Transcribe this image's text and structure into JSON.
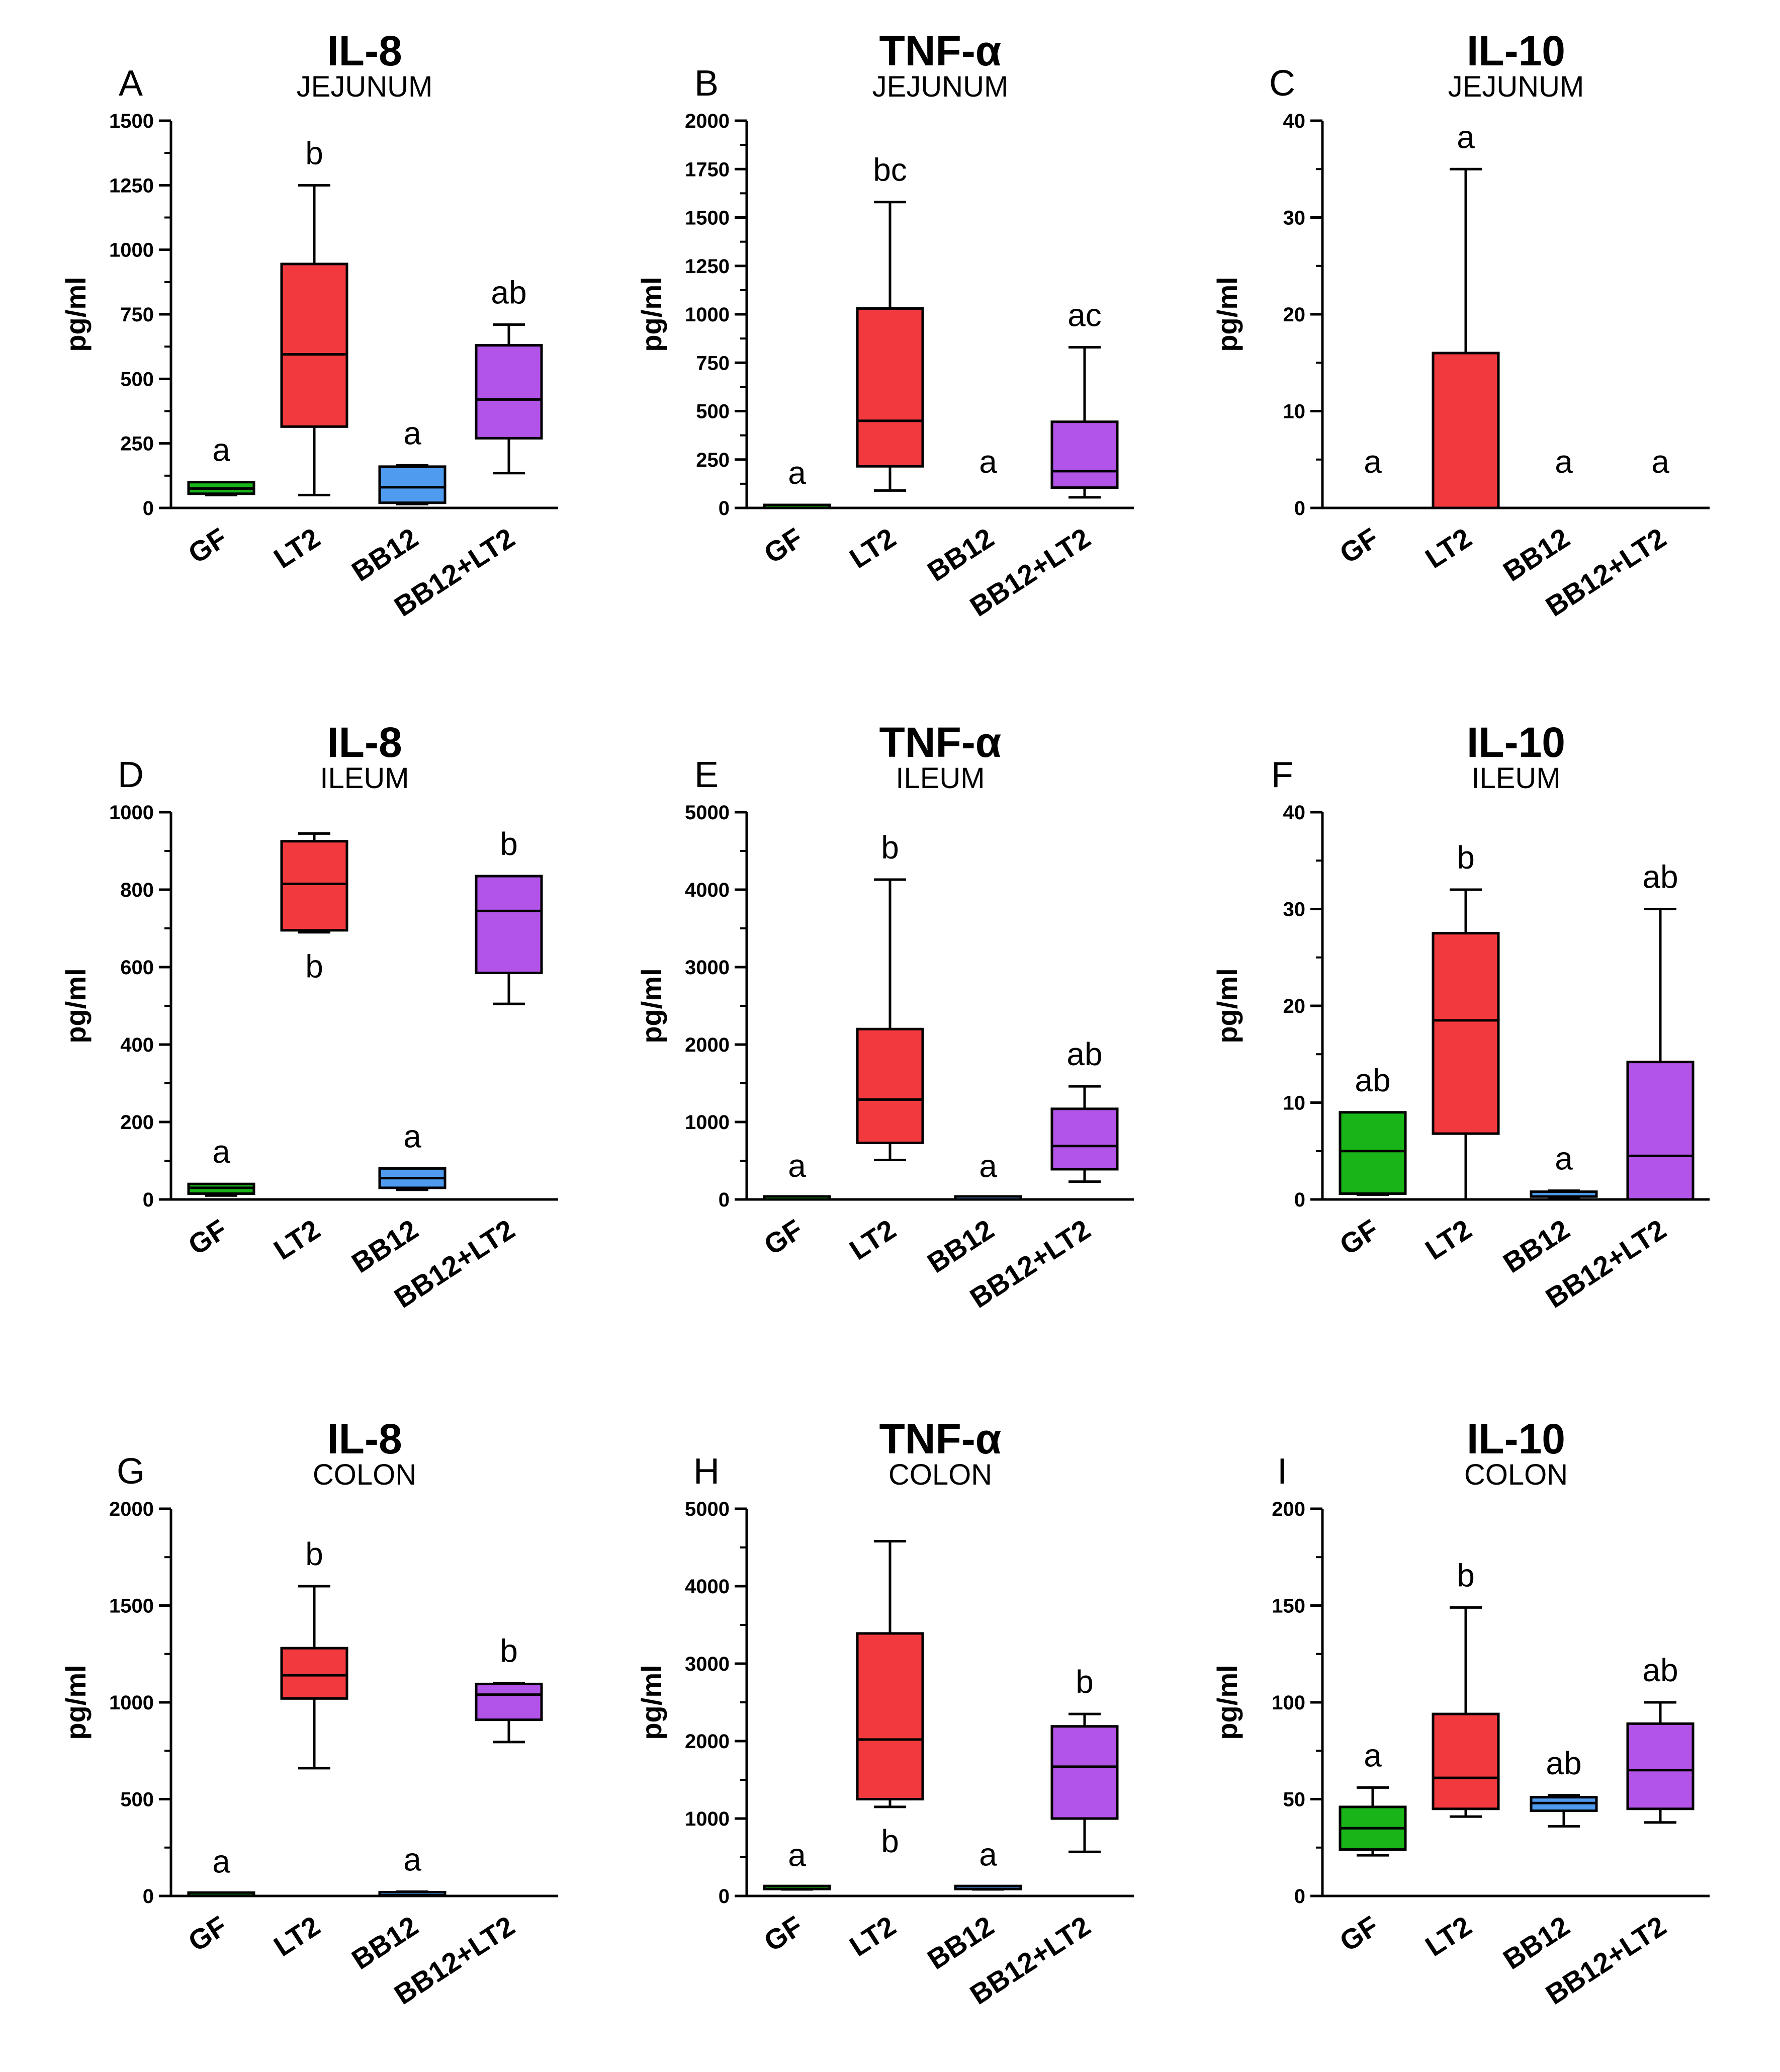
{
  "colors": {
    "GF": "#18b418",
    "LT2": "#f23a3e",
    "BB12": "#4f9bf0",
    "BB12+LT2": "#b354e8"
  },
  "chart_data": [
    {
      "panel": "A",
      "title": "IL-8",
      "subtitle": "JEJUNUM",
      "type": "box",
      "ylabel": "pg/ml",
      "ylim": [
        0,
        1500
      ],
      "yticks": [
        0,
        250,
        500,
        750,
        1000,
        1250,
        1500
      ],
      "yticklabels": [
        "0",
        "250",
        "500",
        "750",
        "1000",
        "1250",
        "1500"
      ],
      "categories": [
        "GF",
        "LT2",
        "BB12",
        "BB12+LT2"
      ],
      "boxes": [
        {
          "min": 50,
          "q1": 55,
          "median": 75,
          "q3": 100,
          "max": 100,
          "label": "a"
        },
        {
          "min": 50,
          "q1": 315,
          "median": 595,
          "q3": 945,
          "max": 1250,
          "label": "b"
        },
        {
          "min": 15,
          "q1": 20,
          "median": 80,
          "q3": 160,
          "max": 165,
          "label": "a"
        },
        {
          "min": 135,
          "q1": 270,
          "median": 420,
          "q3": 630,
          "max": 710,
          "label": "ab"
        }
      ]
    },
    {
      "panel": "B",
      "title": "TNF-α",
      "subtitle": "JEJUNUM",
      "type": "box",
      "ylabel": "pg/ml",
      "ylim": [
        0,
        2000
      ],
      "yticks": [
        0,
        250,
        500,
        750,
        1000,
        1250,
        1500,
        1750,
        2000
      ],
      "yticklabels": [
        "0",
        "250",
        "500",
        "750",
        "1000",
        "1250",
        "1500",
        "1750",
        "2000"
      ],
      "categories": [
        "GF",
        "LT2",
        "BB12",
        "BB12+LT2"
      ],
      "boxes": [
        {
          "min": 0,
          "q1": 0,
          "median": 0,
          "q3": 5,
          "max": 15,
          "label": "a"
        },
        {
          "min": 90,
          "q1": 215,
          "median": 450,
          "q3": 1030,
          "max": 1580,
          "label": "bc"
        },
        {
          "min": 0,
          "q1": 0,
          "median": 0,
          "q3": 0,
          "max": 0,
          "label": "a"
        },
        {
          "min": 55,
          "q1": 105,
          "median": 190,
          "q3": 445,
          "max": 830,
          "label": "ac"
        }
      ]
    },
    {
      "panel": "C",
      "title": "IL-10",
      "subtitle": "JEJUNUM",
      "type": "box",
      "ylabel": "pg/ml",
      "ylim": [
        0,
        40
      ],
      "yticks": [
        0,
        10,
        20,
        30,
        40
      ],
      "yticklabels": [
        "0",
        "10",
        "20",
        "30",
        "40"
      ],
      "categories": [
        "GF",
        "LT2",
        "BB12",
        "BB12+LT2"
      ],
      "boxes": [
        {
          "min": 0,
          "q1": 0,
          "median": 0,
          "q3": 0,
          "max": 0,
          "label": "a"
        },
        {
          "min": 0,
          "q1": 0,
          "median": 0,
          "q3": 16,
          "max": 35,
          "label": "a"
        },
        {
          "min": 0,
          "q1": 0,
          "median": 0,
          "q3": 0,
          "max": 0,
          "label": "a"
        },
        {
          "min": 0,
          "q1": 0,
          "median": 0,
          "q3": 0,
          "max": 0,
          "label": "a"
        }
      ]
    },
    {
      "panel": "D",
      "title": "IL-8",
      "subtitle": "ILEUM",
      "type": "box",
      "ylabel": "pg/ml",
      "ylim": [
        0,
        1000
      ],
      "yticks": [
        0,
        200,
        400,
        600,
        800,
        1000
      ],
      "yticklabels": [
        "0",
        "200",
        "400",
        "600",
        "800",
        "1000"
      ],
      "categories": [
        "GF",
        "LT2",
        "BB12",
        "BB12+LT2"
      ],
      "boxes": [
        {
          "min": 10,
          "q1": 15,
          "median": 30,
          "q3": 40,
          "max": 40,
          "label": "a"
        },
        {
          "min": 690,
          "q1": 695,
          "median": 815,
          "q3": 925,
          "max": 945,
          "label": "b",
          "label_pos": "below"
        },
        {
          "min": 25,
          "q1": 30,
          "median": 55,
          "q3": 80,
          "max": 80,
          "label": "a"
        },
        {
          "min": 505,
          "q1": 585,
          "median": 745,
          "q3": 835,
          "max": 835,
          "label": "b"
        }
      ]
    },
    {
      "panel": "E",
      "title": "TNF-α",
      "subtitle": "ILEUM",
      "type": "box",
      "ylabel": "pg/ml",
      "ylim": [
        0,
        5000
      ],
      "yticks": [
        0,
        1000,
        2000,
        3000,
        4000,
        5000
      ],
      "yticklabels": [
        "0",
        "1000",
        "2000",
        "3000",
        "4000",
        "5000"
      ],
      "categories": [
        "GF",
        "LT2",
        "BB12",
        "BB12+LT2"
      ],
      "boxes": [
        {
          "min": 0,
          "q1": 0,
          "median": 0,
          "q3": 15,
          "max": 20,
          "label": "a"
        },
        {
          "min": 510,
          "q1": 730,
          "median": 1290,
          "q3": 2200,
          "max": 4130,
          "label": "b"
        },
        {
          "min": 0,
          "q1": 0,
          "median": 0,
          "q3": 10,
          "max": 15,
          "label": "a"
        },
        {
          "min": 230,
          "q1": 390,
          "median": 690,
          "q3": 1170,
          "max": 1460,
          "label": "ab"
        }
      ]
    },
    {
      "panel": "F",
      "title": "IL-10",
      "subtitle": "ILEUM",
      "type": "box",
      "ylabel": "pg/ml",
      "ylim": [
        0,
        40
      ],
      "yticks": [
        0,
        10,
        20,
        30,
        40
      ],
      "yticklabels": [
        "0",
        "10",
        "20",
        "30",
        "40"
      ],
      "categories": [
        "GF",
        "LT2",
        "BB12",
        "BB12+LT2"
      ],
      "boxes": [
        {
          "min": 0.5,
          "q1": 0.6,
          "median": 5,
          "q3": 9,
          "max": 9,
          "label": "ab"
        },
        {
          "min": 0,
          "q1": 6.8,
          "median": 18.5,
          "q3": 27.5,
          "max": 32,
          "label": "b"
        },
        {
          "min": 0.2,
          "q1": 0.3,
          "median": 0.5,
          "q3": 0.8,
          "max": 0.9,
          "label": "a"
        },
        {
          "min": 0,
          "q1": 0,
          "median": 4.5,
          "q3": 14.2,
          "max": 30,
          "label": "ab"
        }
      ]
    },
    {
      "panel": "G",
      "title": "IL-8",
      "subtitle": "COLON",
      "type": "box",
      "ylabel": "pg/ml",
      "ylim": [
        0,
        2000
      ],
      "yticks": [
        0,
        500,
        1000,
        1500,
        2000
      ],
      "yticklabels": [
        "0",
        "500",
        "1000",
        "1500",
        "2000"
      ],
      "categories": [
        "GF",
        "LT2",
        "BB12",
        "BB12+LT2"
      ],
      "boxes": [
        {
          "min": 0,
          "q1": 2,
          "median": 5,
          "q3": 8,
          "max": 12,
          "label": "a"
        },
        {
          "min": 660,
          "q1": 1020,
          "median": 1140,
          "q3": 1280,
          "max": 1600,
          "label": "b"
        },
        {
          "min": 2,
          "q1": 4,
          "median": 10,
          "q3": 18,
          "max": 22,
          "label": "a"
        },
        {
          "min": 795,
          "q1": 910,
          "median": 1040,
          "q3": 1095,
          "max": 1100,
          "label": "b"
        }
      ]
    },
    {
      "panel": "H",
      "title": "TNF-α",
      "subtitle": "COLON",
      "type": "box",
      "ylabel": "pg/ml",
      "ylim": [
        0,
        5000
      ],
      "yticks": [
        0,
        1000,
        2000,
        3000,
        4000,
        5000
      ],
      "yticklabels": [
        "0",
        "1000",
        "2000",
        "3000",
        "4000",
        "5000"
      ],
      "categories": [
        "GF",
        "LT2",
        "BB12",
        "BB12+LT2"
      ],
      "boxes": [
        {
          "min": 85,
          "q1": 90,
          "median": 100,
          "q3": 110,
          "max": 115,
          "label": "a"
        },
        {
          "min": 1150,
          "q1": 1250,
          "median": 2020,
          "q3": 3390,
          "max": 4580,
          "label": "b",
          "label_pos": "below"
        },
        {
          "min": 85,
          "q1": 90,
          "median": 100,
          "q3": 110,
          "max": 120,
          "label": "a"
        },
        {
          "min": 570,
          "q1": 1000,
          "median": 1670,
          "q3": 2190,
          "max": 2350,
          "label": "b"
        }
      ]
    },
    {
      "panel": "I",
      "title": "IL-10",
      "subtitle": "COLON",
      "type": "box",
      "ylabel": "pg/ml",
      "ylim": [
        0,
        200
      ],
      "yticks": [
        0,
        50,
        100,
        150,
        200
      ],
      "yticklabels": [
        "0",
        "50",
        "100",
        "150",
        "200"
      ],
      "categories": [
        "GF",
        "LT2",
        "BB12",
        "BB12+LT2"
      ],
      "boxes": [
        {
          "min": 21,
          "q1": 24,
          "median": 35,
          "q3": 46,
          "max": 56,
          "label": "a"
        },
        {
          "min": 41,
          "q1": 45,
          "median": 61,
          "q3": 94,
          "max": 149,
          "label": "b"
        },
        {
          "min": 36,
          "q1": 44,
          "median": 48,
          "q3": 51,
          "max": 52,
          "label": "ab"
        },
        {
          "min": 38,
          "q1": 45,
          "median": 65,
          "q3": 89,
          "max": 100,
          "label": "ab"
        }
      ]
    }
  ]
}
